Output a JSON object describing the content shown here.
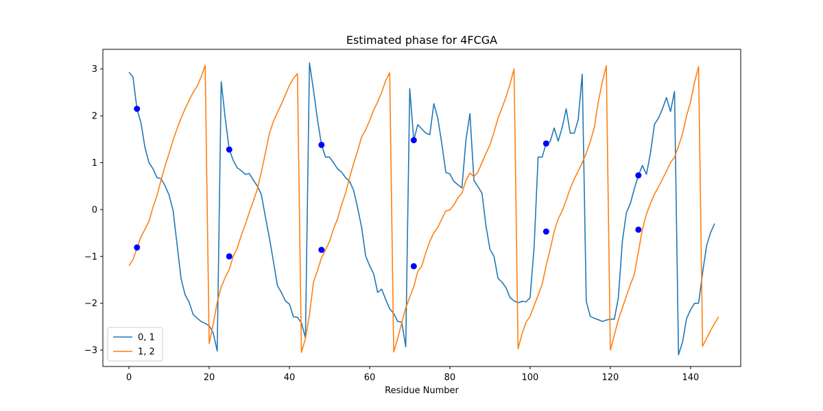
{
  "chart_data": {
    "type": "line",
    "title": "Estimated phase for 4FCGA",
    "xlabel": "Residue Number",
    "ylabel": "",
    "xlim": [
      -6.5,
      152.5
    ],
    "ylim": [
      -3.35,
      3.42
    ],
    "xticks": [
      0,
      20,
      40,
      60,
      80,
      100,
      120,
      140
    ],
    "yticks": [
      -3,
      -2,
      -1,
      0,
      1,
      2,
      3
    ],
    "grid": false,
    "legend_position": "lower-left",
    "series": [
      {
        "name": "0, 1",
        "color": "#1f77b4",
        "points": [
          [
            0,
            2.93
          ],
          [
            1,
            2.83
          ],
          [
            2,
            2.15
          ],
          [
            3,
            1.85
          ],
          [
            4,
            1.32
          ],
          [
            5,
            1.0
          ],
          [
            6,
            0.87
          ],
          [
            7,
            0.68
          ],
          [
            8,
            0.66
          ],
          [
            9,
            0.51
          ],
          [
            10,
            0.31
          ],
          [
            11,
            -0.02
          ],
          [
            12,
            -0.75
          ],
          [
            13,
            -1.48
          ],
          [
            14,
            -1.82
          ],
          [
            15,
            -1.98
          ],
          [
            16,
            -2.24
          ],
          [
            17,
            -2.32
          ],
          [
            18,
            -2.39
          ],
          [
            19,
            -2.43
          ],
          [
            20,
            -2.48
          ],
          [
            21,
            -2.63
          ],
          [
            22,
            -3.02
          ],
          [
            23,
            2.73
          ],
          [
            24,
            1.95
          ],
          [
            25,
            1.28
          ],
          [
            26,
            1.05
          ],
          [
            27,
            0.89
          ],
          [
            28,
            0.83
          ],
          [
            29,
            0.75
          ],
          [
            30,
            0.77
          ],
          [
            31,
            0.63
          ],
          [
            32,
            0.5
          ],
          [
            33,
            0.32
          ],
          [
            34,
            -0.15
          ],
          [
            35,
            -0.6
          ],
          [
            36,
            -1.1
          ],
          [
            37,
            -1.62
          ],
          [
            38,
            -1.77
          ],
          [
            39,
            -1.95
          ],
          [
            40,
            -2.02
          ],
          [
            41,
            -2.29
          ],
          [
            42,
            -2.3
          ],
          [
            43,
            -2.42
          ],
          [
            44,
            -2.74
          ],
          [
            45,
            3.13
          ],
          [
            46,
            2.55
          ],
          [
            47,
            1.92
          ],
          [
            48,
            1.38
          ],
          [
            49,
            1.12
          ],
          [
            50,
            1.12
          ],
          [
            51,
            1.0
          ],
          [
            52,
            0.87
          ],
          [
            53,
            0.8
          ],
          [
            54,
            0.68
          ],
          [
            55,
            0.6
          ],
          [
            56,
            0.41
          ],
          [
            57,
            0.04
          ],
          [
            58,
            -0.38
          ],
          [
            59,
            -0.99
          ],
          [
            60,
            -1.2
          ],
          [
            61,
            -1.37
          ],
          [
            62,
            -1.77
          ],
          [
            63,
            -1.7
          ],
          [
            64,
            -1.92
          ],
          [
            65,
            -2.12
          ],
          [
            66,
            -2.22
          ],
          [
            67,
            -2.39
          ],
          [
            68,
            -2.4
          ],
          [
            69,
            -2.93
          ],
          [
            70,
            2.58
          ],
          [
            71,
            1.48
          ],
          [
            72,
            1.81
          ],
          [
            73,
            1.72
          ],
          [
            74,
            1.63
          ],
          [
            75,
            1.6
          ],
          [
            76,
            2.26
          ],
          [
            77,
            1.95
          ],
          [
            78,
            1.4
          ],
          [
            79,
            0.79
          ],
          [
            80,
            0.76
          ],
          [
            81,
            0.6
          ],
          [
            82,
            0.53
          ],
          [
            83,
            0.46
          ],
          [
            84,
            1.48
          ],
          [
            85,
            2.05
          ],
          [
            86,
            0.62
          ],
          [
            87,
            0.49
          ],
          [
            88,
            0.35
          ],
          [
            89,
            -0.35
          ],
          [
            90,
            -0.85
          ],
          [
            91,
            -1.0
          ],
          [
            92,
            -1.47
          ],
          [
            93,
            -1.55
          ],
          [
            94,
            -1.67
          ],
          [
            95,
            -1.88
          ],
          [
            96,
            -1.95
          ],
          [
            97,
            -1.99
          ],
          [
            98,
            -1.96
          ],
          [
            99,
            -1.97
          ],
          [
            100,
            -1.88
          ],
          [
            101,
            -0.8
          ],
          [
            102,
            1.12
          ],
          [
            103,
            1.12
          ],
          [
            104,
            1.41
          ],
          [
            105,
            1.45
          ],
          [
            106,
            1.74
          ],
          [
            107,
            1.46
          ],
          [
            108,
            1.75
          ],
          [
            109,
            2.15
          ],
          [
            110,
            1.63
          ],
          [
            111,
            1.63
          ],
          [
            112,
            1.92
          ],
          [
            113,
            2.89
          ],
          [
            114,
            -1.96
          ],
          [
            115,
            -2.28
          ],
          [
            116,
            -2.32
          ],
          [
            117,
            -2.35
          ],
          [
            118,
            -2.39
          ],
          [
            119,
            -2.36
          ],
          [
            120,
            -2.34
          ],
          [
            121,
            -2.34
          ],
          [
            122,
            -1.88
          ],
          [
            123,
            -0.68
          ],
          [
            124,
            -0.07
          ],
          [
            125,
            0.13
          ],
          [
            126,
            0.45
          ],
          [
            127,
            0.73
          ],
          [
            128,
            0.94
          ],
          [
            129,
            0.75
          ],
          [
            130,
            1.2
          ],
          [
            131,
            1.82
          ],
          [
            132,
            1.95
          ],
          [
            133,
            2.15
          ],
          [
            134,
            2.39
          ],
          [
            135,
            2.09
          ],
          [
            136,
            2.52
          ],
          [
            137,
            -3.1
          ],
          [
            138,
            -2.83
          ],
          [
            139,
            -2.33
          ],
          [
            140,
            -2.14
          ],
          [
            141,
            -2.0
          ],
          [
            142,
            -2.0
          ],
          [
            143,
            -1.35
          ],
          [
            144,
            -0.77
          ],
          [
            145,
            -0.49
          ],
          [
            146,
            -0.3
          ]
        ]
      },
      {
        "name": "1, 2",
        "color": "#ff7f0e",
        "points": [
          [
            0,
            -1.2
          ],
          [
            1,
            -1.07
          ],
          [
            2,
            -0.82
          ],
          [
            3,
            -0.58
          ],
          [
            4,
            -0.42
          ],
          [
            5,
            -0.25
          ],
          [
            6,
            0.05
          ],
          [
            7,
            0.3
          ],
          [
            8,
            0.63
          ],
          [
            9,
            0.93
          ],
          [
            10,
            1.2
          ],
          [
            11,
            1.48
          ],
          [
            12,
            1.73
          ],
          [
            13,
            1.95
          ],
          [
            14,
            2.15
          ],
          [
            15,
            2.33
          ],
          [
            16,
            2.5
          ],
          [
            17,
            2.63
          ],
          [
            18,
            2.83
          ],
          [
            19,
            3.08
          ],
          [
            20,
            -2.86
          ],
          [
            21,
            -2.45
          ],
          [
            22,
            -1.98
          ],
          [
            23,
            -1.65
          ],
          [
            24,
            -1.45
          ],
          [
            25,
            -1.28
          ],
          [
            26,
            -1.0
          ],
          [
            27,
            -0.82
          ],
          [
            28,
            -0.55
          ],
          [
            29,
            -0.32
          ],
          [
            30,
            -0.06
          ],
          [
            31,
            0.18
          ],
          [
            32,
            0.43
          ],
          [
            33,
            0.8
          ],
          [
            34,
            1.2
          ],
          [
            35,
            1.62
          ],
          [
            36,
            1.88
          ],
          [
            37,
            2.07
          ],
          [
            38,
            2.25
          ],
          [
            39,
            2.45
          ],
          [
            40,
            2.65
          ],
          [
            41,
            2.8
          ],
          [
            42,
            2.9
          ],
          [
            43,
            -3.05
          ],
          [
            44,
            -2.75
          ],
          [
            45,
            -2.25
          ],
          [
            46,
            -1.55
          ],
          [
            47,
            -1.3
          ],
          [
            48,
            -1.03
          ],
          [
            49,
            -0.86
          ],
          [
            50,
            -0.68
          ],
          [
            51,
            -0.41
          ],
          [
            52,
            -0.2
          ],
          [
            53,
            0.1
          ],
          [
            54,
            0.35
          ],
          [
            55,
            0.68
          ],
          [
            56,
            0.98
          ],
          [
            57,
            1.25
          ],
          [
            58,
            1.55
          ],
          [
            59,
            1.7
          ],
          [
            60,
            1.9
          ],
          [
            61,
            2.12
          ],
          [
            62,
            2.3
          ],
          [
            63,
            2.5
          ],
          [
            64,
            2.75
          ],
          [
            65,
            2.92
          ],
          [
            66,
            -3.04
          ],
          [
            67,
            -2.75
          ],
          [
            68,
            -2.42
          ],
          [
            69,
            -2.1
          ],
          [
            70,
            -1.87
          ],
          [
            71,
            -1.65
          ],
          [
            72,
            -1.32
          ],
          [
            73,
            -1.21
          ],
          [
            74,
            -0.92
          ],
          [
            75,
            -0.68
          ],
          [
            76,
            -0.5
          ],
          [
            77,
            -0.38
          ],
          [
            78,
            -0.2
          ],
          [
            79,
            -0.03
          ],
          [
            80,
            -0.01
          ],
          [
            81,
            0.1
          ],
          [
            82,
            0.25
          ],
          [
            83,
            0.35
          ],
          [
            84,
            0.62
          ],
          [
            85,
            0.78
          ],
          [
            86,
            0.7
          ],
          [
            87,
            0.8
          ],
          [
            88,
            1.0
          ],
          [
            89,
            1.2
          ],
          [
            90,
            1.38
          ],
          [
            91,
            1.65
          ],
          [
            92,
            1.95
          ],
          [
            93,
            2.17
          ],
          [
            94,
            2.4
          ],
          [
            95,
            2.68
          ],
          [
            96,
            3.0
          ],
          [
            97,
            -2.97
          ],
          [
            98,
            -2.65
          ],
          [
            99,
            -2.4
          ],
          [
            100,
            -2.28
          ],
          [
            101,
            -2.05
          ],
          [
            102,
            -1.83
          ],
          [
            103,
            -1.6
          ],
          [
            104,
            -1.2
          ],
          [
            105,
            -0.85
          ],
          [
            106,
            -0.47
          ],
          [
            107,
            -0.2
          ],
          [
            108,
            -0.03
          ],
          [
            109,
            0.2
          ],
          [
            110,
            0.45
          ],
          [
            111,
            0.65
          ],
          [
            112,
            0.82
          ],
          [
            113,
            1.0
          ],
          [
            114,
            1.2
          ],
          [
            115,
            1.45
          ],
          [
            116,
            1.75
          ],
          [
            117,
            2.3
          ],
          [
            118,
            2.72
          ],
          [
            119,
            3.07
          ],
          [
            120,
            -3.0
          ],
          [
            121,
            -2.68
          ],
          [
            122,
            -2.35
          ],
          [
            123,
            -2.1
          ],
          [
            124,
            -1.85
          ],
          [
            125,
            -1.6
          ],
          [
            126,
            -1.38
          ],
          [
            127,
            -0.9
          ],
          [
            128,
            -0.42
          ],
          [
            129,
            -0.1
          ],
          [
            130,
            0.13
          ],
          [
            131,
            0.33
          ],
          [
            132,
            0.48
          ],
          [
            133,
            0.65
          ],
          [
            134,
            0.82
          ],
          [
            135,
            1.0
          ],
          [
            136,
            1.12
          ],
          [
            137,
            1.35
          ],
          [
            138,
            1.62
          ],
          [
            139,
            2.0
          ],
          [
            140,
            2.3
          ],
          [
            141,
            2.72
          ],
          [
            142,
            3.05
          ],
          [
            143,
            -2.92
          ],
          [
            144,
            -2.75
          ],
          [
            145,
            -2.58
          ],
          [
            146,
            -2.43
          ],
          [
            147,
            -2.29
          ]
        ]
      }
    ],
    "markers": {
      "color": "#0000ff",
      "points": [
        [
          2,
          2.15
        ],
        [
          2,
          -0.81
        ],
        [
          25,
          1.28
        ],
        [
          25,
          -1.0
        ],
        [
          48,
          1.38
        ],
        [
          48,
          -0.86
        ],
        [
          71,
          1.48
        ],
        [
          71,
          -1.21
        ],
        [
          104,
          1.41
        ],
        [
          104,
          -0.47
        ],
        [
          127,
          0.73
        ],
        [
          127,
          -0.43
        ]
      ]
    }
  }
}
